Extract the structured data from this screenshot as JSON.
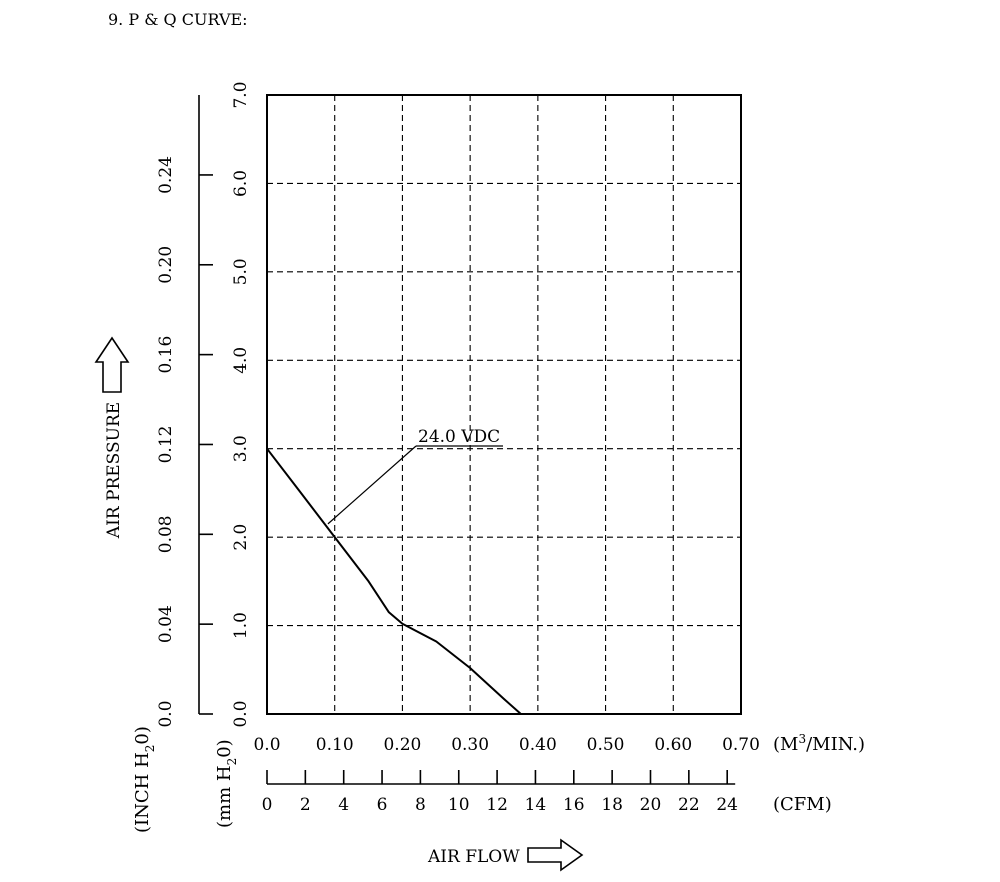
{
  "header": {
    "title": "9. P & Q CURVE:"
  },
  "chart_data": {
    "type": "line",
    "title": "9. P & Q CURVE:",
    "xlabel": "AIR FLOW",
    "ylabel": "AIR PRESSURE",
    "x_unit_primary": "(M",
    "x_unit_primary_sup": "3",
    "x_unit_primary_tail": "/MIN.)",
    "x_unit_secondary": "(CFM)",
    "y_unit_mm_parts": [
      "(mm H",
      "2",
      "0)"
    ],
    "y_unit_inch_parts": [
      "(INCH H",
      "2",
      "0)"
    ],
    "xlim": [
      0,
      0.7
    ],
    "ylim": [
      0,
      7.0
    ],
    "x_ticks": [
      "0.0",
      "0.10",
      "0.20",
      "0.30",
      "0.40",
      "0.50",
      "0.60",
      "0.70"
    ],
    "x_ticks_cfm": [
      "0",
      "2",
      "4",
      "6",
      "8",
      "10",
      "12",
      "14",
      "16",
      "18",
      "20",
      "22",
      "24"
    ],
    "y_ticks_mm": [
      "0.0",
      "1.0",
      "2.0",
      "3.0",
      "4.0",
      "5.0",
      "6.0",
      "7.0"
    ],
    "y_ticks_inch": [
      "0.0",
      "0.04",
      "0.08",
      "0.12",
      "0.16",
      "0.20",
      "0.24"
    ],
    "grid": "dashed",
    "series": [
      {
        "name": "24.0 VDC",
        "color": "#000000",
        "x": [
          0.0,
          0.05,
          0.1,
          0.15,
          0.18,
          0.2,
          0.25,
          0.3,
          0.35,
          0.375
        ],
        "y": [
          3.0,
          2.5,
          2.0,
          1.5,
          1.15,
          1.02,
          0.82,
          0.52,
          0.17,
          0.0
        ]
      }
    ],
    "annotations": [
      {
        "text": "24.0 VDC",
        "points_to_x": 0.09,
        "points_to_y": 2.15
      }
    ]
  }
}
